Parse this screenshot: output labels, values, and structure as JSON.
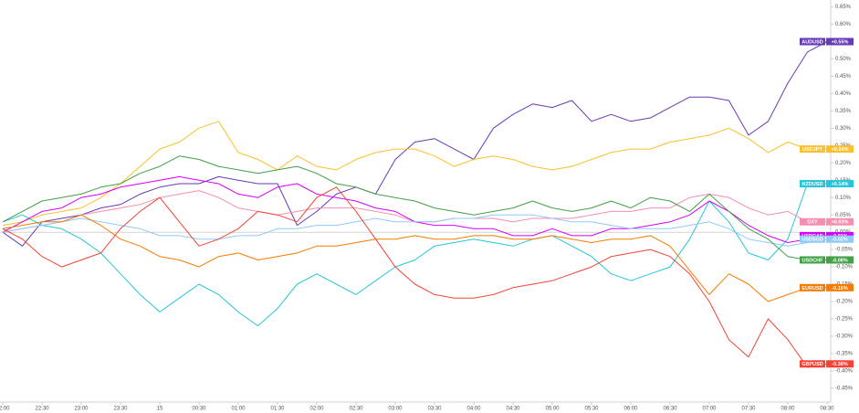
{
  "chart_data": {
    "type": "line",
    "x": [
      0,
      15,
      30,
      45,
      60,
      75,
      90,
      105,
      120,
      135,
      150,
      165,
      180,
      195,
      210,
      225,
      240,
      255,
      270,
      285,
      300,
      315,
      330,
      345,
      360,
      375,
      390,
      405,
      420,
      435,
      450,
      465,
      480,
      495,
      510,
      525,
      540,
      555,
      570,
      585,
      600,
      615,
      630
    ],
    "xlim": [
      0,
      630
    ],
    "xticks": [
      {
        "value": 0,
        "label": "22:00"
      },
      {
        "value": 30,
        "label": "22:30"
      },
      {
        "value": 60,
        "label": "23:00"
      },
      {
        "value": 90,
        "label": "23:30"
      },
      {
        "value": 120,
        "label": "15"
      },
      {
        "value": 150,
        "label": "00:30"
      },
      {
        "value": 180,
        "label": "01:00"
      },
      {
        "value": 210,
        "label": "01:30"
      },
      {
        "value": 240,
        "label": "02:00"
      },
      {
        "value": 270,
        "label": "02:30"
      },
      {
        "value": 300,
        "label": "03:00"
      },
      {
        "value": 330,
        "label": "03:30"
      },
      {
        "value": 360,
        "label": "04:00"
      },
      {
        "value": 390,
        "label": "04:30"
      },
      {
        "value": 420,
        "label": "05:00"
      },
      {
        "value": 450,
        "label": "05:30"
      },
      {
        "value": 480,
        "label": "06:00"
      },
      {
        "value": 510,
        "label": "06:30"
      },
      {
        "value": 540,
        "label": "07:00"
      },
      {
        "value": 570,
        "label": "07:30"
      },
      {
        "value": 600,
        "label": "08:00"
      },
      {
        "value": 630,
        "label": "08:30"
      }
    ],
    "ylim": [
      -0.49,
      0.67
    ],
    "yticks": [
      {
        "value": 0.65,
        "label": "0.65%"
      },
      {
        "value": 0.6,
        "label": "0.60%"
      },
      {
        "value": 0.55,
        "label": "0.55%"
      },
      {
        "value": 0.5,
        "label": "0.50%"
      },
      {
        "value": 0.45,
        "label": "0.45%"
      },
      {
        "value": 0.4,
        "label": "0.40%"
      },
      {
        "value": 0.35,
        "label": "0.35%"
      },
      {
        "value": 0.3,
        "label": "0.30%"
      },
      {
        "value": 0.25,
        "label": "0.25%"
      },
      {
        "value": 0.2,
        "label": "0.20%"
      },
      {
        "value": 0.15,
        "label": "0.15%"
      },
      {
        "value": 0.1,
        "label": "0.10%"
      },
      {
        "value": 0.05,
        "label": "0.05%"
      },
      {
        "value": 0,
        "label": "0.00%"
      },
      {
        "value": -0.05,
        "label": "-0.05%"
      },
      {
        "value": -0.1,
        "label": "-0.10%"
      },
      {
        "value": -0.15,
        "label": "-0.15%"
      },
      {
        "value": -0.2,
        "label": "-0.20%"
      },
      {
        "value": -0.25,
        "label": "-0.25%"
      },
      {
        "value": -0.3,
        "label": "-0.30%"
      },
      {
        "value": -0.35,
        "label": "-0.35%"
      },
      {
        "value": -0.4,
        "label": "-0.40%"
      },
      {
        "value": -0.45,
        "label": "-0.45%"
      }
    ],
    "zero_line": true,
    "series": [
      {
        "name": "AUDUSD",
        "color": "#673ab7",
        "end_label": "+0.55%",
        "values": [
          0,
          -0.04,
          0.03,
          0.04,
          0.05,
          0.07,
          0.08,
          0.11,
          0.13,
          0.14,
          0.14,
          0.16,
          0.15,
          0.14,
          0.14,
          0.02,
          0.06,
          0.11,
          0.13,
          0.11,
          0.21,
          0.26,
          0.27,
          0.24,
          0.21,
          0.3,
          0.34,
          0.37,
          0.36,
          0.38,
          0.32,
          0.34,
          0.32,
          0.33,
          0.36,
          0.39,
          0.39,
          0.38,
          0.28,
          0.32,
          0.43,
          0.52,
          0.55
        ]
      },
      {
        "name": "USDJPY",
        "color": "#fbc02d",
        "end_label": "+0.24%",
        "values": [
          0.02,
          0.03,
          0.05,
          0.06,
          0.07,
          0.1,
          0.14,
          0.19,
          0.24,
          0.26,
          0.3,
          0.32,
          0.23,
          0.21,
          0.18,
          0.22,
          0.19,
          0.18,
          0.21,
          0.23,
          0.24,
          0.24,
          0.22,
          0.19,
          0.21,
          0.22,
          0.21,
          0.19,
          0.18,
          0.19,
          0.21,
          0.23,
          0.24,
          0.24,
          0.26,
          0.27,
          0.28,
          0.3,
          0.27,
          0.23,
          0.26,
          0.24,
          0.24
        ]
      },
      {
        "name": "NZDUSD",
        "color": "#26c6da",
        "end_label": "+0.14%",
        "values": [
          0.03,
          0.05,
          0.02,
          0.01,
          -0.02,
          -0.06,
          -0.12,
          -0.18,
          -0.23,
          -0.19,
          -0.15,
          -0.18,
          -0.23,
          -0.27,
          -0.22,
          -0.15,
          -0.12,
          -0.15,
          -0.18,
          -0.14,
          -0.1,
          -0.08,
          -0.04,
          -0.03,
          -0.02,
          -0.03,
          -0.04,
          -0.02,
          -0.01,
          -0.04,
          -0.07,
          -0.12,
          -0.14,
          -0.12,
          -0.1,
          -0.02,
          0.09,
          0.03,
          -0.06,
          -0.08,
          -0.02,
          0.14,
          0.14
        ]
      },
      {
        "name": "DXY",
        "color": "#f48fb1",
        "end_label": "+0.03%",
        "values": [
          0,
          0.01,
          0.02,
          0.03,
          0.05,
          0.06,
          0.07,
          0.08,
          0.1,
          0.11,
          0.12,
          0.1,
          0.07,
          0.06,
          0.05,
          0.06,
          0.07,
          0.07,
          0.07,
          0.06,
          0.05,
          0.03,
          0.03,
          0.04,
          0.04,
          0.04,
          0.03,
          0.04,
          0.04,
          0.04,
          0.05,
          0.06,
          0.06,
          0.07,
          0.07,
          0.1,
          0.11,
          0.1,
          0.07,
          0.05,
          0.06,
          0.03,
          0.03
        ]
      },
      {
        "name": "USDCAD",
        "color": "#d500f9",
        "end_label": "-0.01%",
        "values": [
          0,
          0.03,
          0.06,
          0.07,
          0.1,
          0.11,
          0.13,
          0.14,
          0.15,
          0.16,
          0.15,
          0.14,
          0.11,
          0.1,
          0.13,
          0.14,
          0.11,
          0.1,
          0.09,
          0.07,
          0.06,
          0.03,
          0.02,
          0.02,
          0.01,
          0.01,
          -0.01,
          -0.01,
          0.01,
          -0.01,
          -0.01,
          0.01,
          0.01,
          0.02,
          0.03,
          0.05,
          0.09,
          0.06,
          0.02,
          -0.01,
          -0.03,
          -0.02,
          -0.01
        ]
      },
      {
        "name": "USDSGD",
        "color": "#90caf9",
        "end_label": "-0.02%",
        "values": [
          0,
          0.01,
          0.02,
          0.03,
          0.04,
          0.03,
          0.02,
          0.01,
          -0.01,
          -0.01,
          -0.02,
          -0.02,
          -0.01,
          -0.01,
          0.01,
          0.01,
          0.02,
          0.02,
          0.03,
          0.04,
          0.03,
          0.03,
          0.03,
          0.04,
          0.04,
          0.05,
          0.05,
          0.05,
          0.04,
          0.03,
          0.03,
          0.02,
          0.01,
          0.01,
          0.01,
          0.02,
          0.03,
          0.01,
          -0.02,
          -0.03,
          -0.04,
          -0.03,
          -0.02
        ]
      },
      {
        "name": "USDCHF",
        "color": "#43a047",
        "end_label": "-0.08%",
        "values": [
          0.03,
          0.06,
          0.09,
          0.1,
          0.11,
          0.13,
          0.14,
          0.17,
          0.19,
          0.22,
          0.21,
          0.19,
          0.18,
          0.17,
          0.18,
          0.19,
          0.17,
          0.14,
          0.13,
          0.11,
          0.1,
          0.09,
          0.07,
          0.06,
          0.05,
          0.06,
          0.07,
          0.09,
          0.07,
          0.06,
          0.07,
          0.09,
          0.07,
          0.1,
          0.09,
          0.06,
          0.11,
          0.06,
          0.01,
          -0.02,
          -0.07,
          -0.08,
          -0.08
        ]
      },
      {
        "name": "EURUSD",
        "color": "#f57c00",
        "end_label": "-0.16%",
        "values": [
          0.01,
          0.02,
          0.03,
          0.03,
          0.05,
          0.02,
          -0.02,
          -0.04,
          -0.07,
          -0.08,
          -0.1,
          -0.07,
          -0.06,
          -0.08,
          -0.07,
          -0.06,
          -0.04,
          -0.04,
          -0.03,
          -0.02,
          -0.02,
          -0.01,
          -0.02,
          -0.02,
          -0.01,
          -0.01,
          -0.02,
          -0.02,
          -0.01,
          -0.02,
          -0.03,
          -0.02,
          -0.02,
          -0.01,
          -0.04,
          -0.11,
          -0.18,
          -0.12,
          -0.15,
          -0.2,
          -0.18,
          -0.16,
          -0.16
        ]
      },
      {
        "name": "GBPUSD",
        "color": "#f44336",
        "end_label": "-0.38%",
        "values": [
          0.01,
          -0.02,
          -0.07,
          -0.1,
          -0.08,
          -0.06,
          0.01,
          0.06,
          0.1,
          0.03,
          -0.04,
          -0.02,
          0.01,
          0.06,
          0.05,
          0.03,
          0.1,
          0.13,
          0.06,
          -0.02,
          -0.1,
          -0.15,
          -0.18,
          -0.19,
          -0.19,
          -0.18,
          -0.16,
          -0.15,
          -0.14,
          -0.12,
          -0.1,
          -0.07,
          -0.06,
          -0.05,
          -0.07,
          -0.12,
          -0.2,
          -0.31,
          -0.36,
          -0.25,
          -0.31,
          -0.39,
          -0.38
        ]
      }
    ]
  }
}
